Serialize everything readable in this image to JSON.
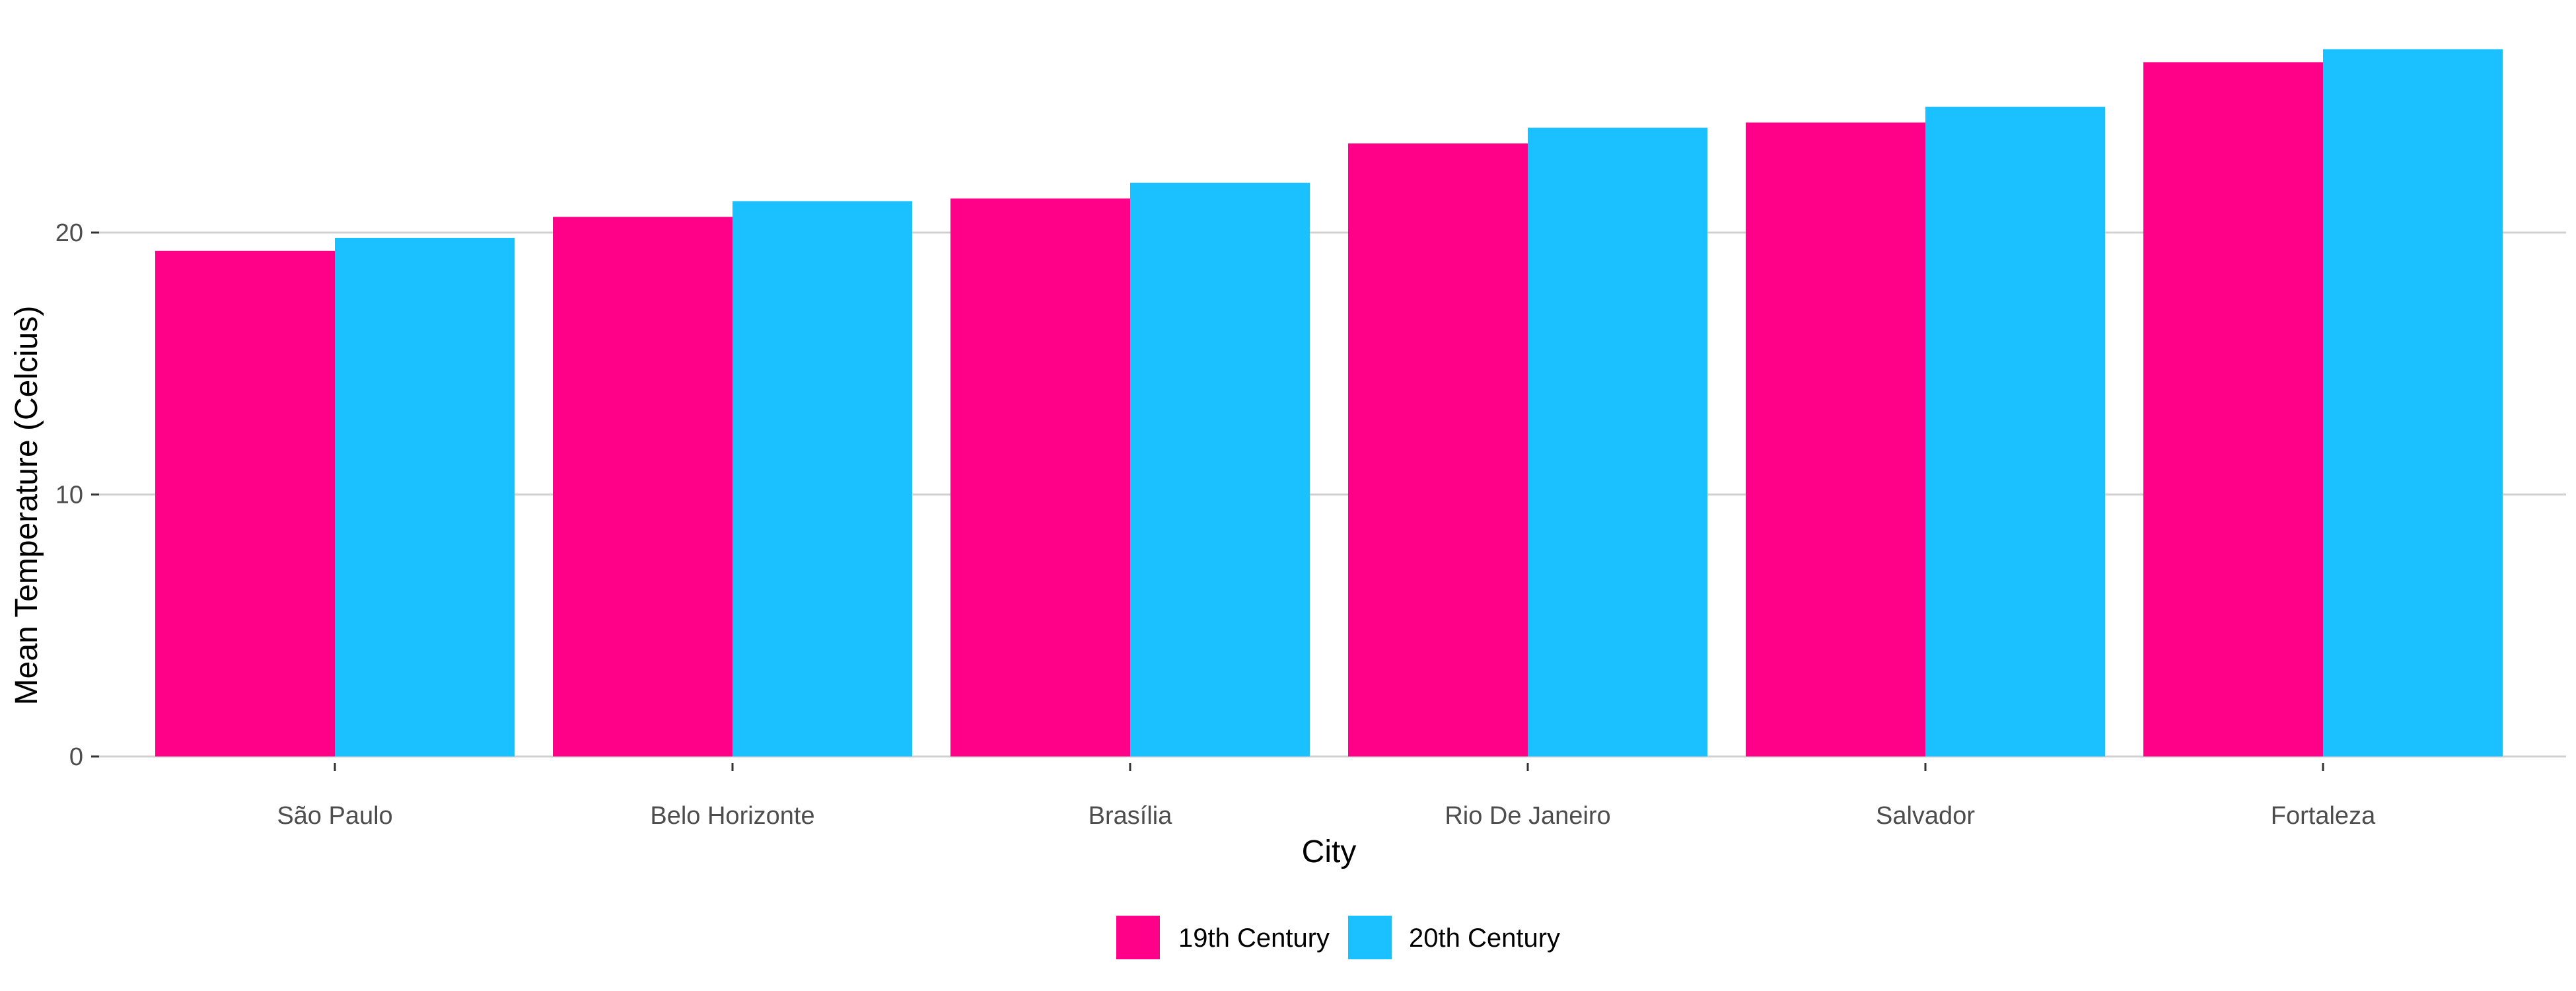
{
  "chart_data": {
    "type": "bar",
    "title": "",
    "xlabel": "City",
    "ylabel": "Mean Temperature (Celcius)",
    "categories": [
      "São Paulo",
      "Belo Horizonte",
      "Brasília",
      "Rio De Janeiro",
      "Salvador",
      "Fortaleza"
    ],
    "series": [
      {
        "name": "19th Century",
        "color": "#FF0088",
        "values": [
          19.3,
          20.6,
          21.3,
          23.4,
          24.2,
          26.5
        ]
      },
      {
        "name": "20th Century",
        "color": "#1AC0FF",
        "values": [
          19.8,
          21.2,
          21.9,
          24.0,
          24.8,
          27.0
        ]
      }
    ],
    "ylim": [
      0,
      27.5
    ],
    "yticks": [
      0,
      10,
      20
    ],
    "ytick_labels": [
      "0",
      "10",
      "20"
    ],
    "grid": true,
    "legend_position": "bottom"
  }
}
